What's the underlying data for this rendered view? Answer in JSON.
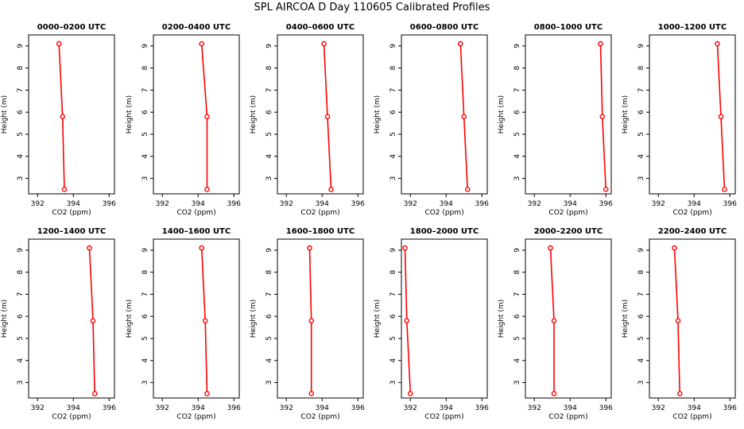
{
  "title": "SPL AIRCOA D  Day 110605  Calibrated Profiles",
  "colors": {
    "series": "#ff0000",
    "axis": "#000000",
    "background": "#ffffff"
  },
  "chart_data": [
    {
      "type": "line",
      "title": "0000–0200 UTC",
      "xlabel": "CO2 (ppm)",
      "ylabel": "Height (m)",
      "xlim": [
        391.5,
        396.3
      ],
      "ylim": [
        2.3,
        9.5
      ],
      "xticks": [
        392,
        394,
        396
      ],
      "yticks": [
        3,
        4,
        5,
        6,
        7,
        8,
        9
      ],
      "grid": false,
      "series": [
        {
          "x": [
            393.5,
            393.4,
            393.2
          ],
          "y": [
            2.5,
            5.8,
            9.1
          ]
        }
      ]
    },
    {
      "type": "line",
      "title": "0200–0400 UTC",
      "xlabel": "CO2 (ppm)",
      "ylabel": "Height (m)",
      "xlim": [
        391.5,
        396.3
      ],
      "ylim": [
        2.3,
        9.5
      ],
      "xticks": [
        392,
        394,
        396
      ],
      "yticks": [
        3,
        4,
        5,
        6,
        7,
        8,
        9
      ],
      "grid": false,
      "series": [
        {
          "x": [
            394.5,
            394.5,
            394.2
          ],
          "y": [
            2.5,
            5.8,
            9.1
          ]
        }
      ]
    },
    {
      "type": "line",
      "title": "0400–0600 UTC",
      "xlabel": "CO2 (ppm)",
      "ylabel": "Height (m)",
      "xlim": [
        391.5,
        396.3
      ],
      "ylim": [
        2.3,
        9.5
      ],
      "xticks": [
        392,
        394,
        396
      ],
      "yticks": [
        3,
        4,
        5,
        6,
        7,
        8,
        9
      ],
      "grid": false,
      "series": [
        {
          "x": [
            394.5,
            394.3,
            394.1
          ],
          "y": [
            2.5,
            5.8,
            9.1
          ]
        }
      ]
    },
    {
      "type": "line",
      "title": "0600–0800 UTC",
      "xlabel": "CO2 (ppm)",
      "ylabel": "Height (m)",
      "xlim": [
        391.5,
        396.3
      ],
      "ylim": [
        2.3,
        9.5
      ],
      "xticks": [
        392,
        394,
        396
      ],
      "yticks": [
        3,
        4,
        5,
        6,
        7,
        8,
        9
      ],
      "grid": false,
      "series": [
        {
          "x": [
            395.2,
            395.0,
            394.8
          ],
          "y": [
            2.5,
            5.8,
            9.1
          ]
        }
      ]
    },
    {
      "type": "line",
      "title": "0800–1000 UTC",
      "xlabel": "CO2 (ppm)",
      "ylabel": "Height (m)",
      "xlim": [
        391.5,
        396.3
      ],
      "ylim": [
        2.3,
        9.5
      ],
      "xticks": [
        392,
        394,
        396
      ],
      "yticks": [
        3,
        4,
        5,
        6,
        7,
        8,
        9
      ],
      "grid": false,
      "series": [
        {
          "x": [
            396.0,
            395.8,
            395.7
          ],
          "y": [
            2.5,
            5.8,
            9.1
          ]
        }
      ]
    },
    {
      "type": "line",
      "title": "1000–1200 UTC",
      "xlabel": "CO2 (ppm)",
      "ylabel": "Height (m)",
      "xlim": [
        391.5,
        396.3
      ],
      "ylim": [
        2.3,
        9.5
      ],
      "xticks": [
        392,
        394,
        396
      ],
      "yticks": [
        3,
        4,
        5,
        6,
        7,
        8,
        9
      ],
      "grid": false,
      "series": [
        {
          "x": [
            395.7,
            395.5,
            395.3
          ],
          "y": [
            2.5,
            5.8,
            9.1
          ]
        }
      ]
    },
    {
      "type": "line",
      "title": "1200–1400 UTC",
      "xlabel": "CO2 (ppm)",
      "ylabel": "Height (m)",
      "xlim": [
        391.5,
        396.3
      ],
      "ylim": [
        2.3,
        9.5
      ],
      "xticks": [
        392,
        394,
        396
      ],
      "yticks": [
        3,
        4,
        5,
        6,
        7,
        8,
        9
      ],
      "grid": false,
      "series": [
        {
          "x": [
            395.2,
            395.1,
            394.9
          ],
          "y": [
            2.5,
            5.8,
            9.1
          ]
        }
      ]
    },
    {
      "type": "line",
      "title": "1400–1600 UTC",
      "xlabel": "CO2 (ppm)",
      "ylabel": "Height (m)",
      "xlim": [
        391.5,
        396.3
      ],
      "ylim": [
        2.3,
        9.5
      ],
      "xticks": [
        392,
        394,
        396
      ],
      "yticks": [
        3,
        4,
        5,
        6,
        7,
        8,
        9
      ],
      "grid": false,
      "series": [
        {
          "x": [
            394.5,
            394.4,
            394.2
          ],
          "y": [
            2.5,
            5.8,
            9.1
          ]
        }
      ]
    },
    {
      "type": "line",
      "title": "1600–1800 UTC",
      "xlabel": "CO2 (ppm)",
      "ylabel": "Height (m)",
      "xlim": [
        391.5,
        396.3
      ],
      "ylim": [
        2.3,
        9.5
      ],
      "xticks": [
        392,
        394,
        396
      ],
      "yticks": [
        3,
        4,
        5,
        6,
        7,
        8,
        9
      ],
      "grid": false,
      "series": [
        {
          "x": [
            393.4,
            393.4,
            393.3
          ],
          "y": [
            2.5,
            5.8,
            9.1
          ]
        }
      ]
    },
    {
      "type": "line",
      "title": "1800–2000 UTC",
      "xlabel": "CO2 (ppm)",
      "ylabel": "Height (m)",
      "xlim": [
        391.5,
        396.3
      ],
      "ylim": [
        2.3,
        9.5
      ],
      "xticks": [
        392,
        394,
        396
      ],
      "yticks": [
        3,
        4,
        5,
        6,
        7,
        8,
        9
      ],
      "grid": false,
      "series": [
        {
          "x": [
            392.0,
            391.8,
            391.7
          ],
          "y": [
            2.5,
            5.8,
            9.1
          ]
        }
      ]
    },
    {
      "type": "line",
      "title": "2000–2200 UTC",
      "xlabel": "CO2 (ppm)",
      "ylabel": "Height (m)",
      "xlim": [
        391.5,
        396.3
      ],
      "ylim": [
        2.3,
        9.5
      ],
      "xticks": [
        392,
        394,
        396
      ],
      "yticks": [
        3,
        4,
        5,
        6,
        7,
        8,
        9
      ],
      "grid": false,
      "series": [
        {
          "x": [
            393.1,
            393.1,
            392.9
          ],
          "y": [
            2.5,
            5.8,
            9.1
          ]
        }
      ]
    },
    {
      "type": "line",
      "title": "2200–2400 UTC",
      "xlabel": "CO2 (ppm)",
      "ylabel": "Height (m)",
      "xlim": [
        391.5,
        396.3
      ],
      "ylim": [
        2.3,
        9.5
      ],
      "xticks": [
        392,
        394,
        396
      ],
      "yticks": [
        3,
        4,
        5,
        6,
        7,
        8,
        9
      ],
      "grid": false,
      "series": [
        {
          "x": [
            393.2,
            393.1,
            392.9
          ],
          "y": [
            2.5,
            5.8,
            9.1
          ]
        }
      ]
    }
  ]
}
